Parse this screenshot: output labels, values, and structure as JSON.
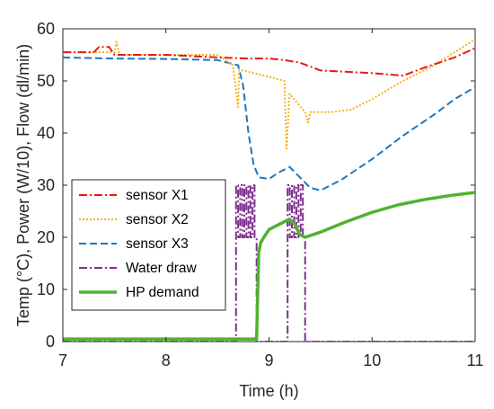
{
  "chart_data": {
    "type": "line",
    "xlabel": "Time (h)",
    "ylabel": "Temp (°C), Power (W/10), Flow (dl/min)",
    "xlim": [
      7,
      11
    ],
    "ylim": [
      0,
      60
    ],
    "xticks": [
      "7",
      "8",
      "9",
      "10",
      "11"
    ],
    "yticks": [
      "0",
      "10",
      "20",
      "30",
      "40",
      "50",
      "60"
    ],
    "legend_position": "bottom-left",
    "grid": false,
    "series": [
      {
        "name": "sensor X1",
        "color": "#e8190f",
        "style": "dashdot",
        "x": [
          7.0,
          7.3,
          7.35,
          7.45,
          7.5,
          8.0,
          8.5,
          8.8,
          9.0,
          9.15,
          9.3,
          9.5,
          9.7,
          10.0,
          10.3,
          10.5,
          10.8,
          11.0
        ],
        "y": [
          55.5,
          55.5,
          56.5,
          56.5,
          55.0,
          55.0,
          54.5,
          54.3,
          54.3,
          54.0,
          53.5,
          52.0,
          51.8,
          51.5,
          51.0,
          52.5,
          54.5,
          56.3
        ]
      },
      {
        "name": "sensor X2",
        "color": "#f5b21b",
        "style": "dotted",
        "x": [
          7.0,
          7.5,
          7.52,
          7.55,
          8.0,
          8.5,
          8.65,
          8.7,
          8.71,
          8.75,
          9.15,
          9.17,
          9.2,
          9.35,
          9.38,
          9.4,
          9.6,
          9.8,
          10.0,
          10.3,
          10.6,
          10.8,
          11.0
        ],
        "y": [
          55.5,
          55.5,
          57.5,
          55.0,
          55.0,
          55.0,
          53.0,
          45.0,
          52.0,
          52.0,
          50.0,
          37.0,
          47.5,
          44.0,
          42.0,
          44.0,
          44.0,
          44.5,
          46.5,
          50.0,
          53.0,
          55.5,
          58.0
        ]
      },
      {
        "name": "sensor X3",
        "color": "#1a78c2",
        "style": "dashed",
        "x": [
          7.0,
          7.5,
          8.0,
          8.5,
          8.7,
          8.75,
          8.8,
          8.85,
          8.9,
          9.0,
          9.1,
          9.2,
          9.3,
          9.4,
          9.5,
          9.7,
          10.0,
          10.3,
          10.6,
          10.8,
          11.0
        ],
        "y": [
          54.5,
          54.3,
          54.2,
          54.0,
          53.0,
          49.0,
          40.0,
          34.0,
          31.5,
          31.2,
          32.5,
          33.5,
          31.5,
          29.5,
          29.0,
          31.0,
          35.0,
          39.5,
          43.5,
          46.5,
          48.8
        ]
      },
      {
        "name": "Water draw",
        "color": "#7e2f8e",
        "style": "dashdot",
        "bursts": [
          [
            8.68,
            8.88
          ],
          [
            9.18,
            9.35
          ]
        ],
        "levels": [
          20,
          30
        ],
        "baseline": 0
      },
      {
        "name": "HP demand",
        "color": "#4fb32f",
        "style": "solid",
        "x": [
          7.0,
          8.88,
          8.9,
          8.92,
          8.95,
          9.0,
          9.1,
          9.2,
          9.25,
          9.3,
          9.35,
          9.5,
          9.75,
          10.0,
          10.25,
          10.5,
          10.75,
          11.0
        ],
        "y": [
          0.5,
          0.5,
          17.0,
          19.0,
          20.0,
          21.5,
          22.5,
          23.5,
          22.5,
          20.5,
          20.0,
          21.0,
          23.0,
          24.8,
          26.2,
          27.2,
          28.0,
          28.6
        ]
      }
    ]
  }
}
